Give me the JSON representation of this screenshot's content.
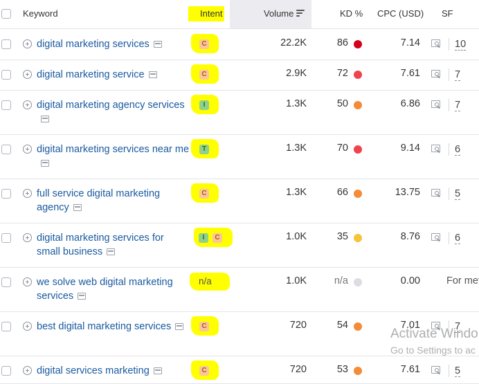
{
  "header": {
    "keyword": "Keyword",
    "intent": "Intent",
    "volume": "Volume",
    "kd": "KD %",
    "cpc": "CPC (USD)",
    "sf": "SF"
  },
  "rows": [
    {
      "keyword": "digital marketing services",
      "intent": [
        "C"
      ],
      "volume": "22.2K",
      "kd": "86",
      "kd_color": "#d4001a",
      "cpc": "7.14",
      "sf": "10"
    },
    {
      "keyword": "digital marketing service",
      "intent": [
        "C"
      ],
      "volume": "2.9K",
      "kd": "72",
      "kd_color": "#f0434f",
      "cpc": "7.61",
      "sf": "7"
    },
    {
      "keyword": "digital marketing agency services",
      "intent": [
        "I"
      ],
      "volume": "1.3K",
      "kd": "50",
      "kd_color": "#f58b37",
      "cpc": "6.86",
      "sf": "7"
    },
    {
      "keyword": "digital marketing services near me",
      "intent": [
        "T"
      ],
      "volume": "1.3K",
      "kd": "70",
      "kd_color": "#f0434f",
      "cpc": "9.14",
      "sf": "6"
    },
    {
      "keyword": "full service digital marketing agency",
      "intent": [
        "C"
      ],
      "volume": "1.3K",
      "kd": "66",
      "kd_color": "#f58b37",
      "cpc": "13.75",
      "sf": "5"
    },
    {
      "keyword": "digital marketing services for small business",
      "intent": [
        "I",
        "C"
      ],
      "volume": "1.0K",
      "kd": "35",
      "kd_color": "#f5c43a",
      "cpc": "8.76",
      "sf": "6"
    },
    {
      "keyword": "we solve web digital marketing services",
      "intent_text": "n/a",
      "volume": "1.0K",
      "kd": "n/a",
      "kd_color": "#dcdde2",
      "cpc": "0.00",
      "sf": "For met"
    },
    {
      "keyword": "best digital marketing services",
      "intent": [
        "C"
      ],
      "volume": "720",
      "kd": "54",
      "kd_color": "#f58b37",
      "cpc": "7.01",
      "sf": "7"
    },
    {
      "keyword": "digital services marketing",
      "intent": [
        "C"
      ],
      "volume": "720",
      "kd": "53",
      "kd_color": "#f58b37",
      "cpc": "7.61",
      "sf": "5"
    }
  ],
  "watermark": {
    "line1": "Activate Windo",
    "line2": "Go to Settings to ac"
  },
  "icons": {
    "add": "plus-circle-icon",
    "serp": "serp-features-icon",
    "serp_search": "serp-search-icon",
    "sort": "sort-lines-icon"
  },
  "colors": {
    "highlight": "#ffff00",
    "link": "#1a5aa0",
    "intent_commercial_bg": "#f9c79a",
    "intent_info_bg": "#8fd18a"
  }
}
